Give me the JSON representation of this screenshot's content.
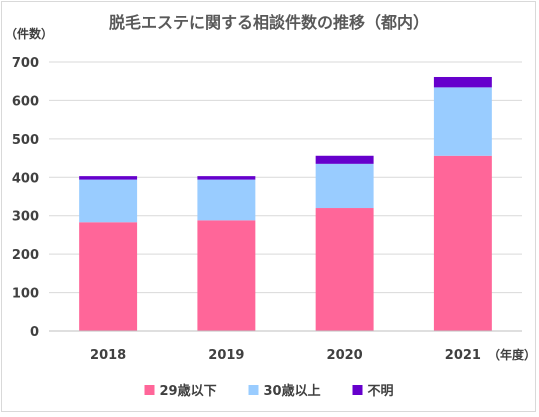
{
  "chart_data": {
    "type": "bar",
    "stacked": true,
    "title": "脱毛エステに関する相談件数の推移（都内）",
    "ylabel": "（件数）",
    "xlabel": "（年度）",
    "categories": [
      "2018",
      "2019",
      "2020",
      "2021"
    ],
    "ylim": [
      0,
      700
    ],
    "yticks": [
      0,
      100,
      200,
      300,
      400,
      500,
      600,
      700
    ],
    "grid": true,
    "legend_position": "bottom",
    "series": [
      {
        "name": "29歳以下",
        "color": "#ff6699",
        "values": [
          283,
          288,
          320,
          456
        ]
      },
      {
        "name": "30歳以上",
        "color": "#99ccff",
        "values": [
          111,
          106,
          115,
          178
        ]
      },
      {
        "name": "不明",
        "color": "#6600cc",
        "values": [
          9,
          9,
          21,
          27
        ]
      }
    ]
  }
}
